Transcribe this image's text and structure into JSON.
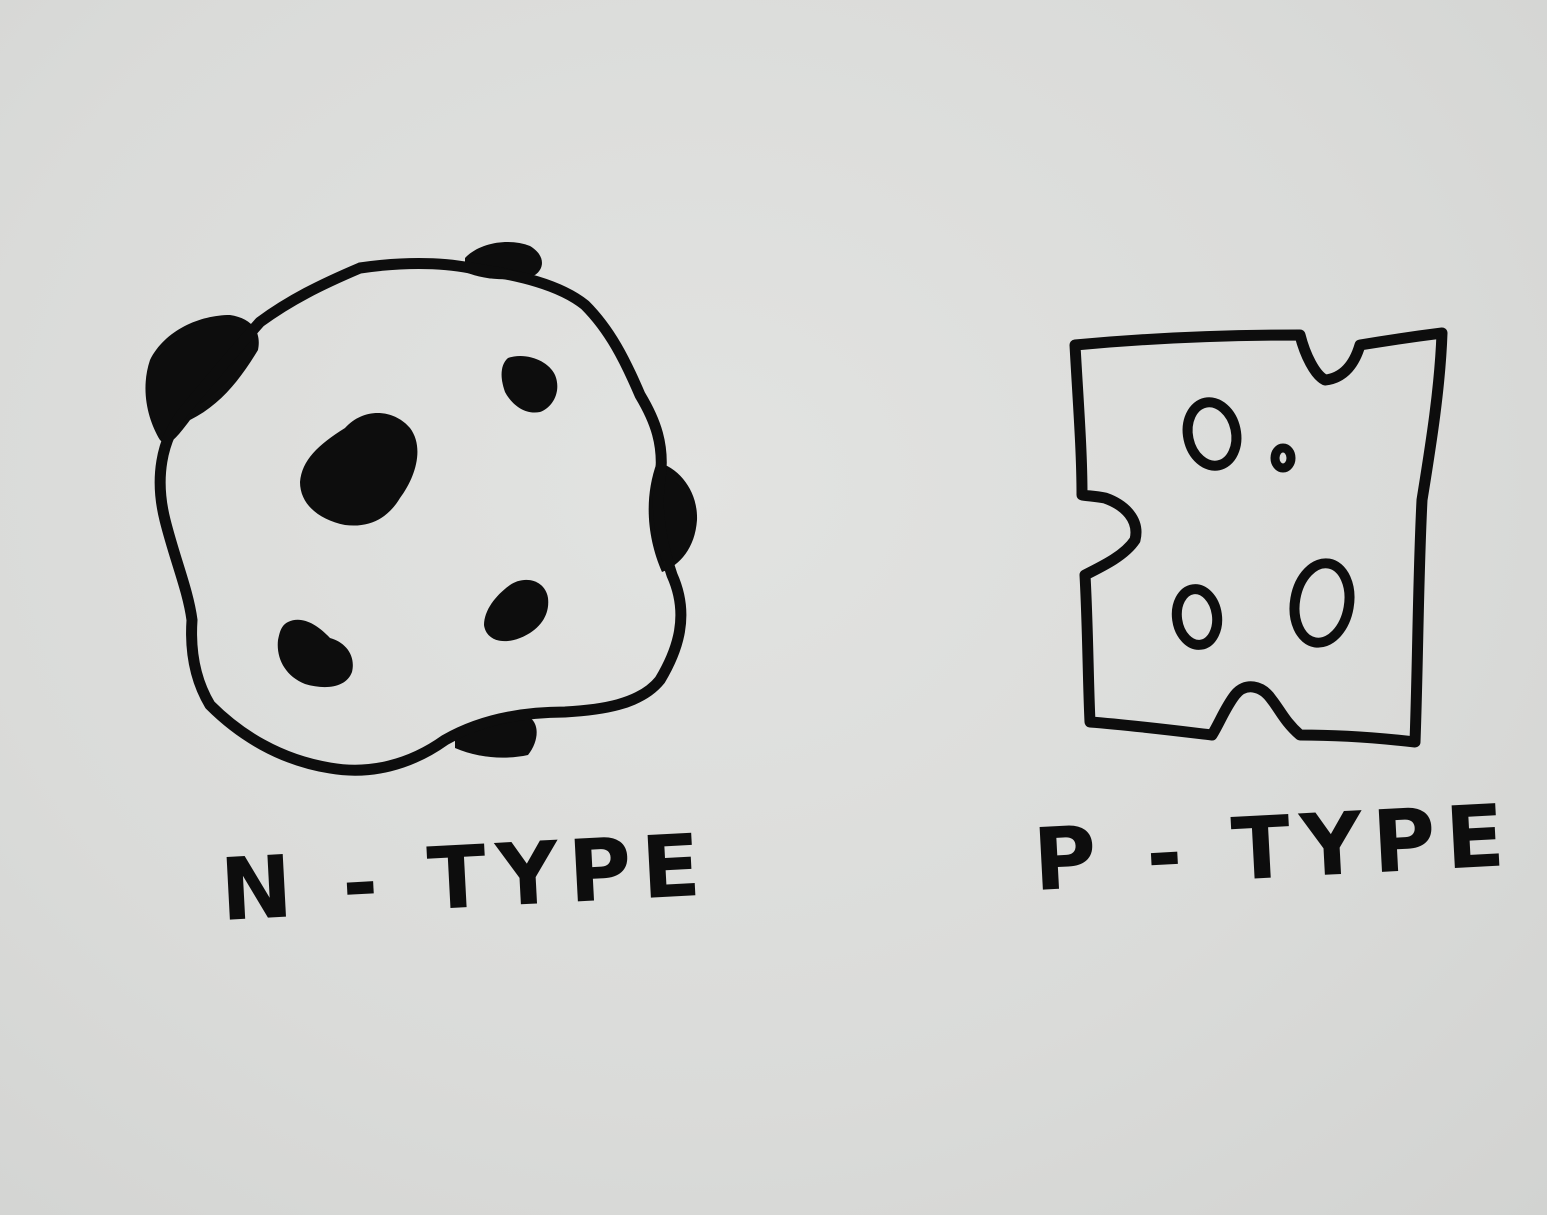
{
  "diagram": {
    "figures": [
      {
        "id": "n-type",
        "label": "N - TYPE"
      },
      {
        "id": "p-type",
        "label": "P - TYPE"
      }
    ],
    "ink_color": "#0d0d0d",
    "paper_color": "#dcdddb"
  }
}
